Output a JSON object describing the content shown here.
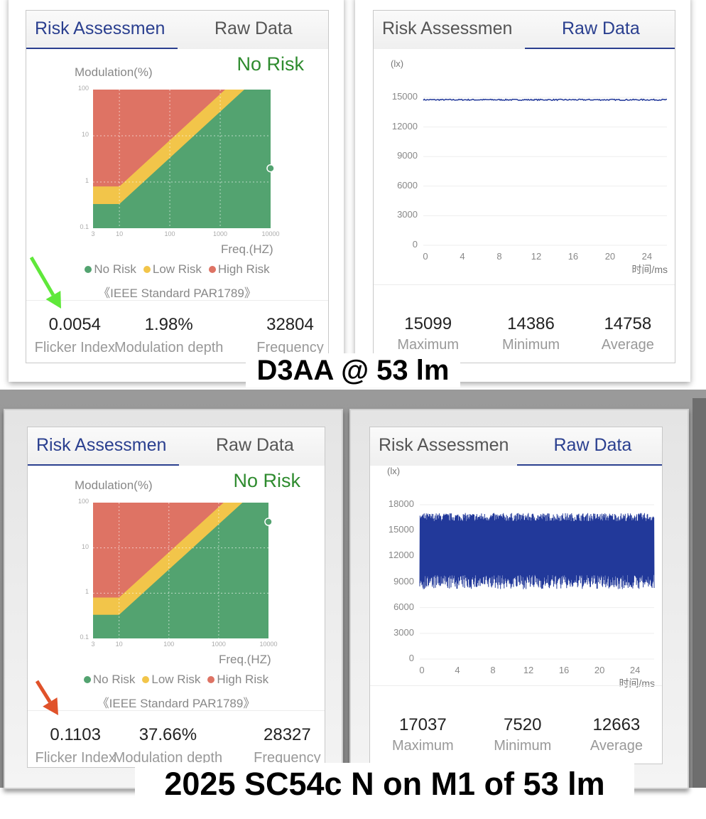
{
  "captions": {
    "top": "D3AA @ 53 lm",
    "bottom": "2025 SC54c N on M1 of 53 lm"
  },
  "tabs": {
    "risk": "Risk Assessmen",
    "raw": "Raw Data"
  },
  "risk_common": {
    "y_title": "Modulation(%)",
    "x_title": "Freq.(HZ)",
    "y_ticks": [
      "100",
      "10",
      "1",
      "0.1"
    ],
    "x_ticks": [
      "3",
      "10",
      "100",
      "1000",
      "10000"
    ],
    "legend": [
      "No Risk",
      "Low Risk",
      "High Risk"
    ],
    "standard": "《IEEE Standard PAR1789》",
    "stat_labels": [
      "Flicker Index",
      "Modulation depth",
      "Frequency"
    ]
  },
  "raw_common": {
    "y_unit": "(lx)",
    "x_title": "时间/ms",
    "x_ticks": [
      "0",
      "4",
      "8",
      "12",
      "16",
      "20",
      "24"
    ],
    "stat_labels": [
      "Maximum",
      "Minimum",
      "Average"
    ]
  },
  "colors": {
    "no_risk": "#53a370",
    "low_risk": "#f2c54a",
    "high_risk": "#de7364",
    "signal": "#22399a",
    "tab_active": "#2a3f8f",
    "verdict": "#2e8b2e"
  },
  "panels": [
    {
      "verdict": "No Risk",
      "stats": [
        "0.0054",
        "1.98%",
        "32804"
      ],
      "raw_y_ticks": [
        "15000",
        "12000",
        "9000",
        "6000",
        "3000",
        "0"
      ],
      "raw_stats": [
        "15099",
        "14386",
        "14758"
      ]
    },
    {
      "verdict": "No Risk",
      "stats": [
        "0.1103",
        "37.66%",
        "28327"
      ],
      "raw_y_ticks": [
        "18000",
        "15000",
        "12000",
        "9000",
        "6000",
        "3000",
        "0"
      ],
      "raw_stats": [
        "17037",
        "7520",
        "12663"
      ]
    }
  ],
  "chart_data": [
    {
      "type": "area",
      "title": "Risk Assessment (D3AA @ 53 lm)",
      "xlabel": "Freq.(HZ)",
      "ylabel": "Modulation(%)",
      "xscale": "log",
      "yscale": "log",
      "xlim": [
        3,
        10000
      ],
      "ylim": [
        0.1,
        100
      ],
      "regions": {
        "no_risk": "M < 0.0333*f (min 0.33 below 10 Hz)",
        "low_risk": "M < 0.08*f (min 0.8 below 10 Hz)",
        "high_risk": "above"
      },
      "point": {
        "frequency": 32804,
        "modulation": 1.98
      },
      "grid": true,
      "legend": "bottom"
    },
    {
      "type": "line",
      "title": "Raw Data (D3AA @ 53 lm)",
      "xlabel": "时间/ms",
      "ylabel": "(lx)",
      "xlim": [
        0,
        25.6
      ],
      "ylim": [
        0,
        15000
      ],
      "y_max": 15099,
      "y_min": 14386,
      "y_avg": 14758
    },
    {
      "type": "area",
      "title": "Risk Assessment (2025 SC54c N on M1 of 53 lm)",
      "xlabel": "Freq.(HZ)",
      "ylabel": "Modulation(%)",
      "xscale": "log",
      "yscale": "log",
      "xlim": [
        3,
        10000
      ],
      "ylim": [
        0.1,
        100
      ],
      "point": {
        "frequency": 28327,
        "modulation": 37.66
      },
      "grid": true,
      "legend": "bottom"
    },
    {
      "type": "line",
      "title": "Raw Data (2025 SC54c N on M1 of 53 lm)",
      "xlabel": "时间/ms",
      "ylabel": "(lx)",
      "xlim": [
        0,
        25.6
      ],
      "ylim": [
        0,
        18000
      ],
      "y_max": 17037,
      "y_min": 7520,
      "y_avg": 12663
    }
  ]
}
